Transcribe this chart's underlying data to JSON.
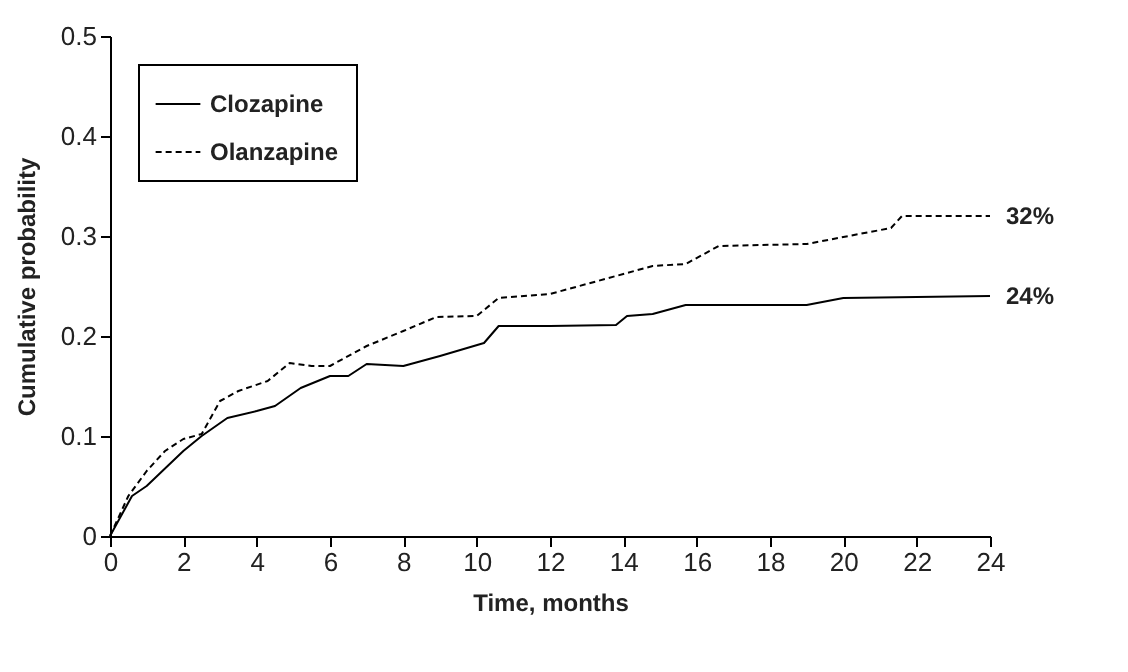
{
  "chart_data": {
    "type": "line",
    "xlabel": "Time, months",
    "ylabel": "Cumulative probability",
    "xlim": [
      0,
      24
    ],
    "xticks": [
      0,
      2,
      4,
      6,
      8,
      10,
      12,
      14,
      16,
      18,
      20,
      22,
      24
    ],
    "ylim": [
      0,
      0.5
    ],
    "yticks": [
      {
        "value": 0,
        "label": "0"
      },
      0.1,
      0.2,
      0.3,
      0.4,
      0.5
    ],
    "grid": false,
    "legend": "top left",
    "marker": "none",
    "series": [
      {
        "name": "Clozapine",
        "color": "#000000",
        "line_style": "solid",
        "x": [
          0,
          0.6,
          1,
          2,
          2.5,
          3.2,
          4,
          4.5,
          5.2,
          6,
          6.5,
          7,
          8,
          9,
          10.2,
          10.6,
          12,
          13.8,
          14.1,
          14.8,
          15.7,
          17,
          19,
          20,
          22,
          24
        ],
        "values": [
          0,
          0.04,
          0.05,
          0.085,
          0.1,
          0.118,
          0.125,
          0.13,
          0.148,
          0.16,
          0.16,
          0.172,
          0.17,
          0.18,
          0.193,
          0.21,
          0.21,
          0.211,
          0.22,
          0.222,
          0.231,
          0.231,
          0.231,
          0.238,
          0.239,
          0.24
        ]
      },
      {
        "name": "Olanzapine",
        "color": "#000000",
        "line_style": "dashed",
        "x": [
          0,
          0.5,
          1,
          1.5,
          2,
          2.5,
          3,
          3.5,
          4.3,
          4.9,
          5.5,
          6,
          7,
          8,
          8.9,
          10,
          10.6,
          12,
          14,
          14.8,
          15.7,
          16.6,
          19,
          21.3,
          21.6,
          24
        ],
        "values": [
          0,
          0.04,
          0.065,
          0.085,
          0.097,
          0.102,
          0.135,
          0.145,
          0.155,
          0.173,
          0.17,
          0.17,
          0.19,
          0.205,
          0.219,
          0.22,
          0.238,
          0.242,
          0.262,
          0.27,
          0.272,
          0.29,
          0.292,
          0.308,
          0.32,
          0.32
        ]
      }
    ],
    "annotations": [
      {
        "text": "32%",
        "x": 24,
        "y": 0.32
      },
      {
        "text": "24%",
        "x": 24,
        "y": 0.24
      }
    ]
  }
}
